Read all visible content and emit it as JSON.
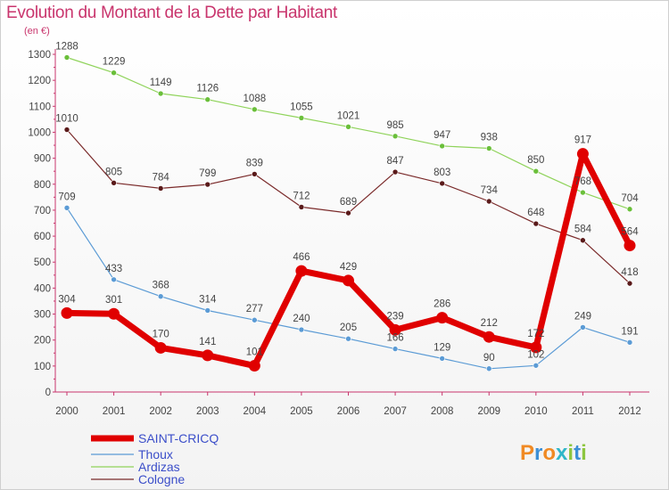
{
  "header": {
    "title": "Evolution du Montant de la Dette par Habitant",
    "unit": "(en €)"
  },
  "logo": {
    "text": "Proxiti"
  },
  "colors": {
    "title": "#c9356d",
    "SAINT-CRICQ": "#ee0000",
    "Thoux": "#5b9bd5",
    "Ardizas": "#7acb4a",
    "Cologne": "#7a2a2a"
  },
  "chart_data": {
    "type": "line",
    "title": "Evolution du Montant de la Dette par Habitant",
    "ylabel": "(en €)",
    "ylim": [
      0,
      1300
    ],
    "yticks": [
      0,
      100,
      200,
      300,
      400,
      500,
      600,
      700,
      800,
      900,
      1000,
      1100,
      1200,
      1300
    ],
    "grid": false,
    "legend": "bottom-left",
    "x": [
      "2000",
      "2001",
      "2002",
      "2003",
      "2004",
      "2005",
      "2006",
      "2007",
      "2008",
      "2009",
      "2010",
      "2011",
      "2012"
    ],
    "series": [
      {
        "name": "SAINT-CRICQ",
        "values": [
          304,
          301,
          170,
          141,
          101,
          466,
          429,
          239,
          286,
          212,
          172,
          917,
          564
        ]
      },
      {
        "name": "Thoux",
        "values": [
          709,
          433,
          368,
          314,
          277,
          240,
          205,
          166,
          129,
          90,
          102,
          249,
          191
        ]
      },
      {
        "name": "Ardizas",
        "values": [
          1288,
          1229,
          1149,
          1126,
          1088,
          1055,
          1021,
          985,
          947,
          938,
          850,
          768,
          704
        ]
      },
      {
        "name": "Cologne",
        "values": [
          1010,
          805,
          784,
          799,
          839,
          712,
          689,
          847,
          803,
          734,
          648,
          584,
          418
        ]
      }
    ]
  }
}
